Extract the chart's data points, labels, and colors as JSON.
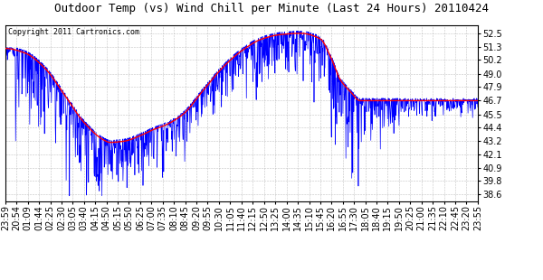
{
  "title": "Outdoor Temp (vs) Wind Chill per Minute (Last 24 Hours) 20110424",
  "copyright": "Copyright 2011 Cartronics.com",
  "yticks": [
    38.6,
    39.8,
    40.9,
    42.1,
    43.2,
    44.4,
    45.5,
    46.7,
    47.9,
    49.0,
    50.2,
    51.3,
    52.5
  ],
  "ylim": [
    38.0,
    53.2
  ],
  "temp_color": "#ff0000",
  "wind_color": "#0000ff",
  "bg_color": "#ffffff",
  "grid_color": "#aaaaaa",
  "title_fontsize": 9,
  "copyright_fontsize": 6,
  "tick_fontsize": 7,
  "xtick_labels": [
    "23:59",
    "20:54",
    "01:09",
    "01:44",
    "02:25",
    "02:30",
    "03:05",
    "03:40",
    "04:15",
    "04:50",
    "05:15",
    "05:50",
    "06:25",
    "07:00",
    "07:35",
    "08:10",
    "08:45",
    "09:20",
    "09:55",
    "10:30",
    "11:05",
    "11:40",
    "12:15",
    "12:50",
    "13:25",
    "14:00",
    "14:35",
    "15:10",
    "15:45",
    "16:20",
    "16:55",
    "17:30",
    "18:05",
    "18:40",
    "19:15",
    "19:50",
    "20:25",
    "21:00",
    "21:35",
    "22:10",
    "22:45",
    "23:20",
    "23:55"
  ],
  "red_keypoints_x": [
    0,
    60,
    120,
    180,
    240,
    300,
    318,
    360,
    420,
    450,
    480,
    540,
    600,
    660,
    720,
    780,
    840,
    900,
    960,
    990,
    1020,
    1050,
    1080,
    1440
  ],
  "red_keypoints_y": [
    51.2,
    50.8,
    49.5,
    47.2,
    44.8,
    43.3,
    43.1,
    43.2,
    43.8,
    44.2,
    44.5,
    45.5,
    47.5,
    49.5,
    51.0,
    52.0,
    52.4,
    52.5,
    52.0,
    50.5,
    48.5,
    47.5,
    46.7,
    46.7
  ]
}
